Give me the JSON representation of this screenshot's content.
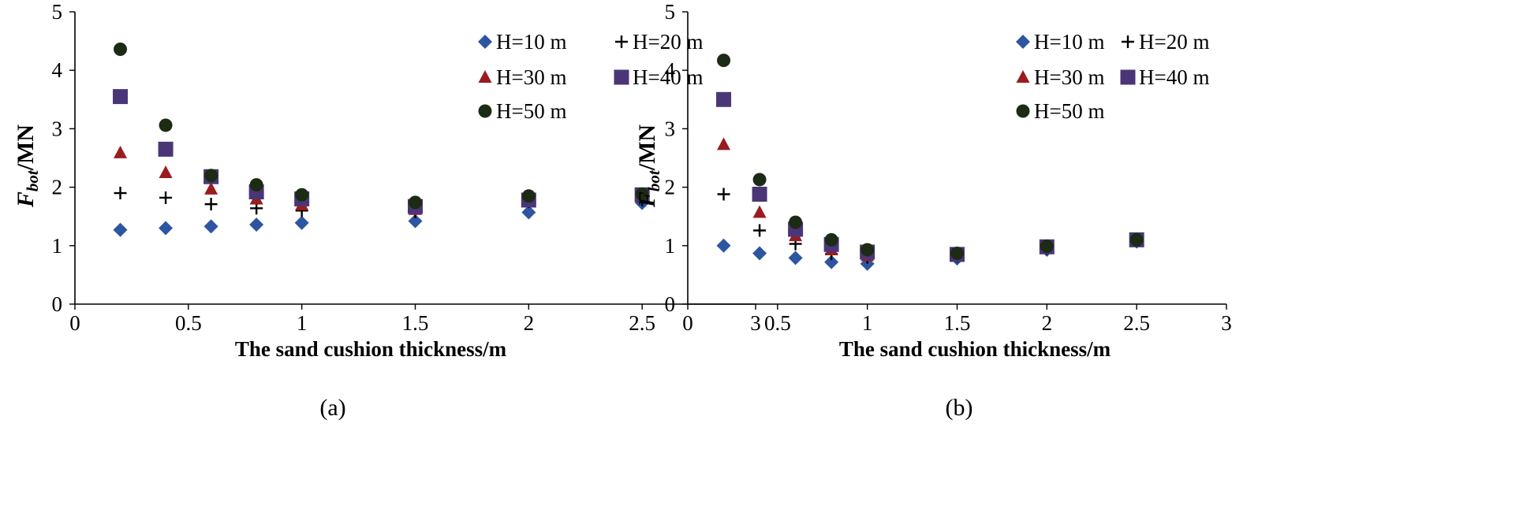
{
  "colors": {
    "H=10 m": "#2e55a0",
    "H=20 m": "#000000",
    "H=30 m": "#9a1c1f",
    "H=40 m": "#4a3677",
    "H=50 m": "#1c2b14"
  },
  "chart_data": [
    {
      "type": "scatter",
      "panel": "(a)",
      "xlabel": "The sand cushion thickness/m",
      "ylabel_main": "F",
      "ylabel_sub": "bot",
      "ylabel_unit": "/MN",
      "xlim": [
        0,
        3
      ],
      "ylim": [
        0,
        5
      ],
      "xticks": [
        0,
        0.5,
        1,
        1.5,
        2,
        2.5,
        3
      ],
      "xtick_labels": [
        "0",
        "0.5",
        "1",
        "1.5",
        "2",
        "2.5",
        "3"
      ],
      "yticks": [
        0,
        1,
        2,
        3,
        4,
        5
      ],
      "ytick_labels": [
        "0",
        "1",
        "2",
        "3",
        "4",
        "5"
      ],
      "legend": [
        "H=10 m",
        "H=20 m",
        "H=30 m",
        "H=40 m",
        "H=50 m"
      ],
      "x": [
        0.2,
        0.4,
        0.6,
        0.8,
        1.0,
        1.5,
        2.0,
        2.5
      ],
      "series": [
        {
          "name": "H=10 m",
          "marker": "diamond",
          "values": [
            1.27,
            1.3,
            1.33,
            1.36,
            1.39,
            1.42,
            1.57,
            1.73
          ]
        },
        {
          "name": "H=20 m",
          "marker": "plus",
          "values": [
            1.9,
            1.82,
            1.71,
            1.64,
            1.6,
            1.58,
            1.75,
            1.78
          ]
        },
        {
          "name": "H=30 m",
          "marker": "triangle",
          "values": [
            2.59,
            2.25,
            1.97,
            1.8,
            1.7,
            1.62,
            1.76,
            1.83
          ]
        },
        {
          "name": "H=40 m",
          "marker": "square",
          "values": [
            3.55,
            2.65,
            2.18,
            1.92,
            1.8,
            1.67,
            1.78,
            1.87
          ]
        },
        {
          "name": "H=50 m",
          "marker": "circle",
          "values": [
            4.36,
            3.06,
            2.2,
            2.04,
            1.87,
            1.74,
            1.85,
            1.88
          ]
        }
      ]
    },
    {
      "type": "scatter",
      "panel": "(b)",
      "xlabel": "The sand cushion thickness/m",
      "ylabel_main": "F",
      "ylabel_sub": "bot",
      "ylabel_unit": "/MN",
      "xlim": [
        0,
        3
      ],
      "ylim": [
        0,
        5
      ],
      "xticks": [
        0,
        0.5,
        1,
        1.5,
        2,
        2.5,
        3
      ],
      "xtick_labels": [
        "0",
        "0.5",
        "1",
        "1.5",
        "2",
        "2.5",
        "3"
      ],
      "yticks": [
        0,
        1,
        2,
        3,
        4,
        5
      ],
      "ytick_labels": [
        "0",
        "1",
        "2",
        "3",
        "4",
        "5"
      ],
      "legend": [
        "H=10 m",
        "H=20 m",
        "H=30 m",
        "H=40 m",
        "H=50 m"
      ],
      "x": [
        0.2,
        0.4,
        0.6,
        0.8,
        1.0,
        1.5,
        2.0,
        2.5
      ],
      "series": [
        {
          "name": "H=10 m",
          "marker": "diamond",
          "values": [
            1.0,
            0.87,
            0.79,
            0.72,
            0.69,
            0.78,
            0.93,
            1.07
          ]
        },
        {
          "name": "H=20 m",
          "marker": "plus",
          "values": [
            1.88,
            1.26,
            1.03,
            0.86,
            0.8,
            0.82,
            0.95,
            1.08
          ]
        },
        {
          "name": "H=30 m",
          "marker": "triangle",
          "values": [
            2.73,
            1.57,
            1.17,
            0.93,
            0.83,
            0.84,
            0.96,
            1.09
          ]
        },
        {
          "name": "H=40 m",
          "marker": "square",
          "values": [
            3.5,
            1.88,
            1.28,
            1.02,
            0.89,
            0.85,
            0.98,
            1.1
          ]
        },
        {
          "name": "H=50 m",
          "marker": "circle",
          "values": [
            4.17,
            2.13,
            1.4,
            1.1,
            0.93,
            0.87,
            0.99,
            1.1
          ]
        }
      ]
    }
  ]
}
